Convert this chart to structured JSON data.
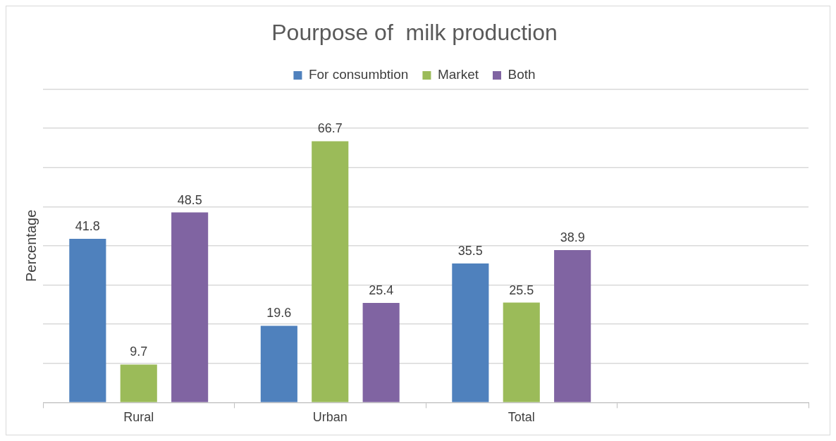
{
  "chart_data": {
    "type": "bar",
    "title": "Pourpose of  milk production",
    "ylabel": "Percentage",
    "categories": [
      "Rural",
      "Urban",
      "Total",
      null
    ],
    "series": [
      {
        "name": "For consumbtion",
        "color": "#4f81bd",
        "values": [
          41.8,
          19.6,
          35.5,
          null
        ]
      },
      {
        "name": "Market",
        "color": "#9bbb59",
        "values": [
          9.7,
          66.7,
          25.5,
          null
        ]
      },
      {
        "name": "Both",
        "color": "#8064a2",
        "values": [
          48.5,
          25.4,
          38.9,
          null
        ]
      }
    ],
    "ylim": [
      0,
      80
    ],
    "yticks": [
      {
        "value": 0,
        "label": null
      },
      {
        "value": 10,
        "label": null
      },
      {
        "value": 20,
        "label": null
      },
      {
        "value": 30,
        "label": null
      },
      {
        "value": 40,
        "label": null
      },
      {
        "value": 50,
        "label": null
      },
      {
        "value": 60,
        "label": null
      },
      {
        "value": 70,
        "label": null
      },
      {
        "value": 80,
        "label": null
      }
    ],
    "tick_labels": "x",
    "grid": "y",
    "legend": "top",
    "data_labels": true
  }
}
